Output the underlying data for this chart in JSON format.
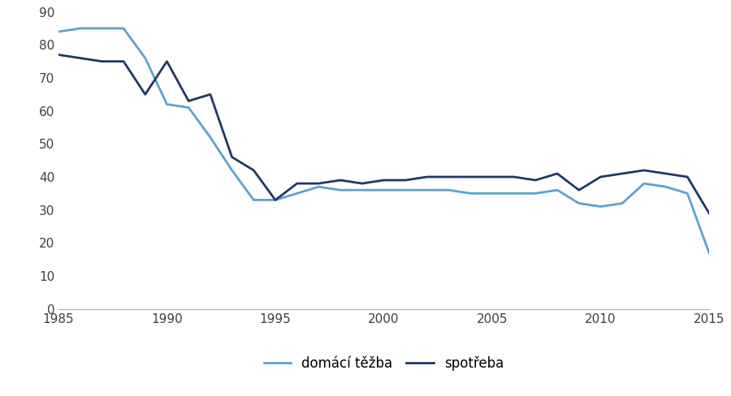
{
  "years": [
    1985,
    1986,
    1987,
    1988,
    1989,
    1990,
    1991,
    1992,
    1993,
    1994,
    1995,
    1996,
    1997,
    1998,
    1999,
    2000,
    2001,
    2002,
    2003,
    2004,
    2005,
    2006,
    2007,
    2008,
    2009,
    2010,
    2011,
    2012,
    2013,
    2014,
    2015
  ],
  "tezba": [
    84,
    85,
    85,
    85,
    76,
    62,
    61,
    52,
    42,
    33,
    33,
    35,
    37,
    36,
    36,
    36,
    36,
    36,
    36,
    35,
    35,
    35,
    35,
    36,
    32,
    31,
    32,
    38,
    37,
    35,
    17
  ],
  "spotreba": [
    77,
    76,
    75,
    75,
    65,
    75,
    63,
    65,
    46,
    42,
    33,
    38,
    38,
    39,
    38,
    39,
    39,
    40,
    40,
    40,
    40,
    40,
    39,
    41,
    36,
    40,
    41,
    42,
    41,
    40,
    29
  ],
  "tezba_color": "#5ba3d0",
  "spotreba_color": "#1f3864",
  "tezba_label": "domácí těžba",
  "spotreba_label": "spotřeba",
  "xlim": [
    1985,
    2015
  ],
  "ylim": [
    0,
    90
  ],
  "yticks": [
    0,
    10,
    20,
    30,
    40,
    50,
    60,
    70,
    80,
    90
  ],
  "xticks": [
    1985,
    1990,
    1995,
    2000,
    2005,
    2010,
    2015
  ],
  "background_color": "#ffffff",
  "linewidth": 2.0,
  "legend_fontsize": 12,
  "tick_fontsize": 11
}
